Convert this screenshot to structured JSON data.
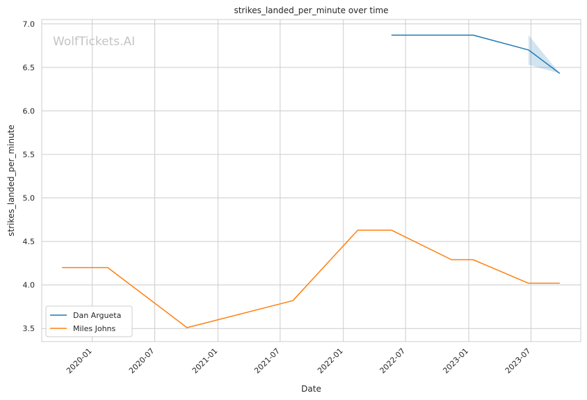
{
  "chart_data": {
    "type": "line",
    "title": "strikes_landed_per_minute over time",
    "xlabel": "Date",
    "ylabel": "strikes_landed_per_minute",
    "watermark": "WolfTickets.AI",
    "xlim": [
      "2019-08-07",
      "2023-11-23"
    ],
    "ylim": [
      3.35,
      7.05
    ],
    "x_ticks": [
      "2020-01",
      "2020-07",
      "2021-01",
      "2021-07",
      "2022-01",
      "2022-07",
      "2023-01",
      "2023-07"
    ],
    "y_ticks": [
      3.5,
      4.0,
      4.5,
      5.0,
      5.5,
      6.0,
      6.5,
      7.0
    ],
    "grid": true,
    "legend_position": "lower-left",
    "series": [
      {
        "name": "Dan Argueta",
        "color": "#1f77b4",
        "x": [
          "2022-05-21",
          "2023-01-14",
          "2023-06-24",
          "2023-09-23"
        ],
        "y": [
          6.87,
          6.87,
          6.7,
          6.43
        ],
        "band": {
          "x": [
            "2023-06-24",
            "2023-09-23"
          ],
          "lower": [
            6.53,
            6.43
          ],
          "upper": [
            6.87,
            6.43
          ]
        }
      },
      {
        "name": "Miles Johns",
        "color": "#ff7f0e",
        "x": [
          "2019-10-05",
          "2020-02-15",
          "2020-10-03",
          "2021-08-07",
          "2022-02-12",
          "2022-05-21",
          "2022-11-12",
          "2023-01-14",
          "2023-06-24",
          "2023-09-23"
        ],
        "y": [
          4.2,
          4.2,
          3.51,
          3.82,
          4.63,
          4.63,
          4.29,
          4.29,
          4.02,
          4.02
        ]
      }
    ]
  }
}
